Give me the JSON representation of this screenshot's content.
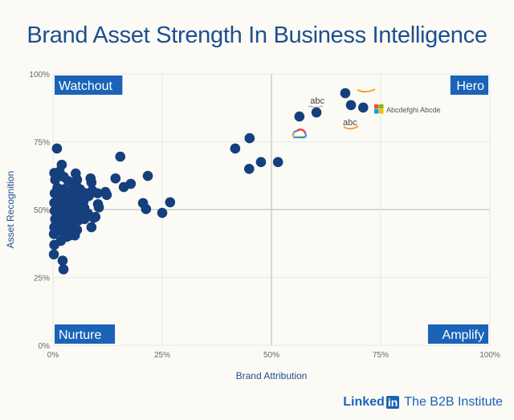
{
  "chart_data": {
    "type": "scatter",
    "title": "Brand Asset Strength In Business Intelligence",
    "xlabel": "Brand Attribution",
    "ylabel": "Asset Recognition",
    "xlim": [
      0,
      100
    ],
    "ylim": [
      0,
      100
    ],
    "xticks": [
      "0%",
      "25%",
      "50%",
      "75%",
      "100%"
    ],
    "yticks": [
      "0%",
      "25%",
      "50%",
      "75%",
      "100%"
    ],
    "grid": true,
    "quadrants": {
      "top_left": "Watchout",
      "top_right": "Hero",
      "bottom_left": "Nurture",
      "bottom_right": "Amplify"
    },
    "point_color": "#153f7d",
    "logo_labels": [
      {
        "text": "abc",
        "x": 60.5,
        "y": 90
      },
      {
        "text": "Abcdefghi Abcde",
        "x": 75,
        "y": 87.5
      },
      {
        "text": "abc",
        "x": 68,
        "y": 82
      }
    ],
    "points": [
      [
        66.9,
        92.9
      ],
      [
        68.2,
        88.5
      ],
      [
        71,
        87.6
      ],
      [
        56.4,
        84.3
      ],
      [
        60.3,
        85.8
      ],
      [
        41.7,
        72.5
      ],
      [
        45,
        76.3
      ],
      [
        47.6,
        67.5
      ],
      [
        51.5,
        67.5
      ],
      [
        44.9,
        65
      ],
      [
        15.4,
        69.5
      ],
      [
        21.7,
        62.4
      ],
      [
        14.3,
        61.5
      ],
      [
        17.8,
        59.5
      ],
      [
        16.2,
        58.3
      ],
      [
        12,
        56.5
      ],
      [
        12.3,
        55.4
      ],
      [
        26.8,
        52.7
      ],
      [
        20.6,
        52.4
      ],
      [
        21.3,
        50.2
      ],
      [
        25,
        48.8
      ],
      [
        10.3,
        52
      ],
      [
        10.5,
        50.8
      ],
      [
        9.7,
        47.3
      ],
      [
        8.8,
        43.5
      ],
      [
        0.9,
        72.5
      ],
      [
        2,
        66.5
      ],
      [
        1.5,
        64
      ],
      [
        0.3,
        63.5
      ],
      [
        0.5,
        61
      ],
      [
        5.2,
        63.3
      ],
      [
        2.5,
        62
      ],
      [
        3.5,
        60.5
      ],
      [
        5.5,
        61
      ],
      [
        8.6,
        61.5
      ],
      [
        8.8,
        60
      ],
      [
        5.3,
        58.8
      ],
      [
        1,
        58
      ],
      [
        2.5,
        57.5
      ],
      [
        4.2,
        57
      ],
      [
        6.2,
        57.5
      ],
      [
        7.5,
        56
      ],
      [
        9,
        57
      ],
      [
        10.2,
        56
      ],
      [
        0.4,
        56
      ],
      [
        1.8,
        55
      ],
      [
        3,
        54.5
      ],
      [
        4.5,
        53.5
      ],
      [
        5.7,
        54.5
      ],
      [
        7,
        53
      ],
      [
        8.2,
        55
      ],
      [
        0.3,
        52.5
      ],
      [
        1.2,
        51.5
      ],
      [
        2.2,
        52.5
      ],
      [
        3.5,
        51
      ],
      [
        4.8,
        52
      ],
      [
        6,
        51
      ],
      [
        7.2,
        50.5
      ],
      [
        0.4,
        49.5
      ],
      [
        1.5,
        48.5
      ],
      [
        2.8,
        49.5
      ],
      [
        4,
        48.5
      ],
      [
        5.3,
        49
      ],
      [
        6.5,
        48
      ],
      [
        8,
        48.5
      ],
      [
        9.3,
        47
      ],
      [
        0.5,
        46.5
      ],
      [
        1.3,
        45
      ],
      [
        2.5,
        46
      ],
      [
        3.7,
        45.5
      ],
      [
        4.5,
        46.5
      ],
      [
        5.8,
        46
      ],
      [
        7.2,
        46.5
      ],
      [
        0.3,
        43.5
      ],
      [
        1.8,
        43
      ],
      [
        3,
        44
      ],
      [
        4.2,
        43.5
      ],
      [
        5.5,
        42.5
      ],
      [
        0.2,
        41
      ],
      [
        2.3,
        41.5
      ],
      [
        3.8,
        40.5
      ],
      [
        5,
        40.5
      ],
      [
        1.8,
        38.5
      ],
      [
        3.2,
        40
      ],
      [
        0.3,
        37
      ],
      [
        0.2,
        33.5
      ],
      [
        2.2,
        31.2
      ],
      [
        2.4,
        28
      ]
    ]
  },
  "footer": {
    "brand_prefix": "Linked",
    "brand_in": "in",
    "institute": "The B2B Institute"
  }
}
